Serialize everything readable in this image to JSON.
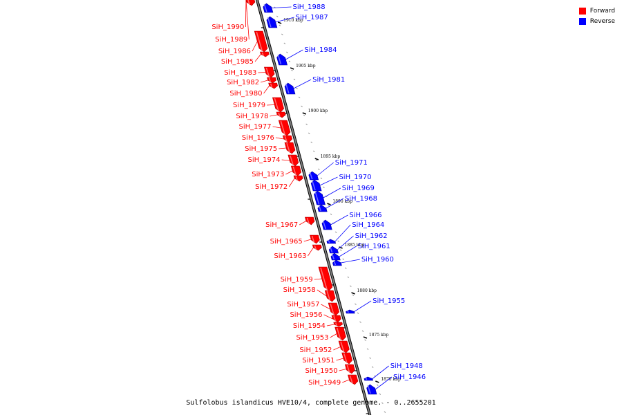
{
  "caption": "Sulfolobus islandicus HVE10/4, complete genome. - 0..2655201",
  "legend": {
    "forward": {
      "label": "Forward",
      "color": "#ff0000"
    },
    "reverse": {
      "label": "Reverse",
      "color": "#0000ff"
    }
  },
  "colors": {
    "forward": "#ff0000",
    "reverse": "#0000ff",
    "axis": "#808080"
  },
  "ticks": [
    {
      "label": "1910 kbp"
    },
    {
      "label": "1905 kbp"
    },
    {
      "label": "1900 kbp"
    },
    {
      "label": "1895 kbp"
    },
    {
      "label": "1890 kbp"
    },
    {
      "label": "1885 kbp"
    },
    {
      "label": "1880 kbp"
    },
    {
      "label": "1875 kbp"
    },
    {
      "label": "1870 kbp"
    }
  ],
  "genes": [
    {
      "name": "SiH_1990",
      "strand": "forward"
    },
    {
      "name": "SiH_1989",
      "strand": "forward"
    },
    {
      "name": "SiH_1986",
      "strand": "forward"
    },
    {
      "name": "SiH_1985",
      "strand": "forward"
    },
    {
      "name": "SiH_1983",
      "strand": "forward"
    },
    {
      "name": "SiH_1982",
      "strand": "forward"
    },
    {
      "name": "SiH_1980",
      "strand": "forward"
    },
    {
      "name": "SiH_1979",
      "strand": "forward"
    },
    {
      "name": "SiH_1978",
      "strand": "forward"
    },
    {
      "name": "SiH_1977",
      "strand": "forward"
    },
    {
      "name": "SiH_1976",
      "strand": "forward"
    },
    {
      "name": "SiH_1975",
      "strand": "forward"
    },
    {
      "name": "SiH_1974",
      "strand": "forward"
    },
    {
      "name": "SiH_1973",
      "strand": "forward"
    },
    {
      "name": "SiH_1972",
      "strand": "forward"
    },
    {
      "name": "SiH_1967",
      "strand": "forward"
    },
    {
      "name": "SiH_1965",
      "strand": "forward"
    },
    {
      "name": "SiH_1963",
      "strand": "forward"
    },
    {
      "name": "SiH_1959",
      "strand": "forward"
    },
    {
      "name": "SiH_1958",
      "strand": "forward"
    },
    {
      "name": "SiH_1957",
      "strand": "forward"
    },
    {
      "name": "SiH_1956",
      "strand": "forward"
    },
    {
      "name": "SiH_1954",
      "strand": "forward"
    },
    {
      "name": "SiH_1953",
      "strand": "forward"
    },
    {
      "name": "SiH_1952",
      "strand": "forward"
    },
    {
      "name": "SiH_1951",
      "strand": "forward"
    },
    {
      "name": "SiH_1950",
      "strand": "forward"
    },
    {
      "name": "SiH_1949",
      "strand": "forward"
    },
    {
      "name": "SiH_1988",
      "strand": "reverse"
    },
    {
      "name": "SiH_1987",
      "strand": "reverse"
    },
    {
      "name": "SiH_1984",
      "strand": "reverse"
    },
    {
      "name": "SiH_1981",
      "strand": "reverse"
    },
    {
      "name": "SiH_1971",
      "strand": "reverse"
    },
    {
      "name": "SiH_1970",
      "strand": "reverse"
    },
    {
      "name": "SiH_1969",
      "strand": "reverse"
    },
    {
      "name": "SiH_1968",
      "strand": "reverse"
    },
    {
      "name": "SiH_1966",
      "strand": "reverse"
    },
    {
      "name": "SiH_1964",
      "strand": "reverse"
    },
    {
      "name": "SiH_1962",
      "strand": "reverse"
    },
    {
      "name": "SiH_1961",
      "strand": "reverse"
    },
    {
      "name": "SiH_1960",
      "strand": "reverse"
    },
    {
      "name": "SiH_1955",
      "strand": "reverse"
    },
    {
      "name": "SiH_1948",
      "strand": "reverse"
    },
    {
      "name": "SiH_1946",
      "strand": "reverse"
    }
  ]
}
